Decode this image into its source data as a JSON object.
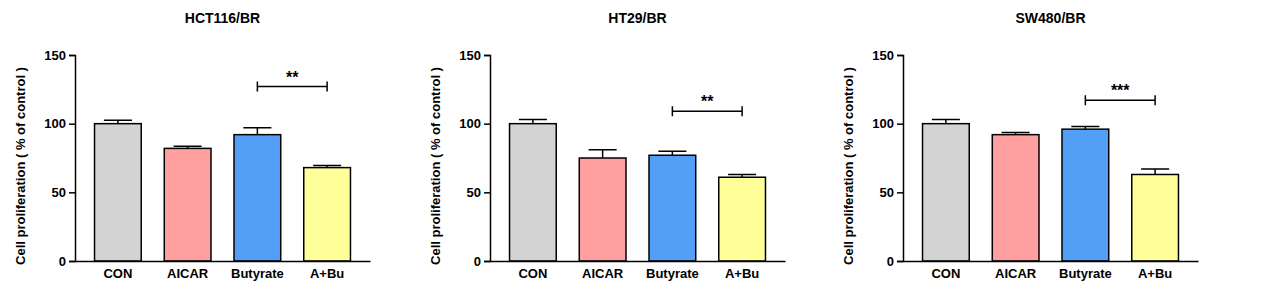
{
  "chart_data": [
    {
      "type": "bar",
      "title": "HCT116/BR",
      "y_label": "Cell proliferation ( % of control )",
      "categories": [
        "CON",
        "AICAR",
        "Butyrate",
        "A+Bu"
      ],
      "values": [
        100,
        82,
        92,
        68
      ],
      "errors": [
        2.5,
        1.5,
        5,
        1.5
      ],
      "colors": [
        "#d3d3d3",
        "#ff9f9f",
        "#529ff5",
        "#ffff99"
      ],
      "ylim": [
        0,
        150
      ],
      "yticks": [
        0,
        50,
        100,
        150
      ],
      "grid": false,
      "annotations": [
        {
          "text": "**",
          "from": "Butyrate",
          "to": "A+Bu",
          "y": 127
        }
      ]
    },
    {
      "type": "bar",
      "title": "HT29/BR",
      "y_label": "Cell proliferation ( % of control )",
      "categories": [
        "CON",
        "AICAR",
        "Butyrate",
        "A+Bu"
      ],
      "values": [
        100,
        75,
        77,
        61
      ],
      "errors": [
        3,
        6,
        3,
        2
      ],
      "colors": [
        "#d3d3d3",
        "#ff9f9f",
        "#529ff5",
        "#ffff99"
      ],
      "ylim": [
        0,
        150
      ],
      "yticks": [
        0,
        50,
        100,
        150
      ],
      "grid": false,
      "annotations": [
        {
          "text": "**",
          "from": "Butyrate",
          "to": "A+Bu",
          "y": 109
        }
      ]
    },
    {
      "type": "bar",
      "title": "SW480/BR",
      "y_label": "Cell proliferation ( % of control )",
      "categories": [
        "CON",
        "AICAR",
        "Butyrate",
        "A+Bu"
      ],
      "values": [
        100,
        92,
        96,
        63
      ],
      "errors": [
        3,
        1.5,
        2,
        4
      ],
      "colors": [
        "#d3d3d3",
        "#ff9f9f",
        "#529ff5",
        "#ffff99"
      ],
      "ylim": [
        0,
        150
      ],
      "yticks": [
        0,
        50,
        100,
        150
      ],
      "grid": false,
      "annotations": [
        {
          "text": "***",
          "from": "Butyrate",
          "to": "A+Bu",
          "y": 117
        }
      ]
    }
  ]
}
